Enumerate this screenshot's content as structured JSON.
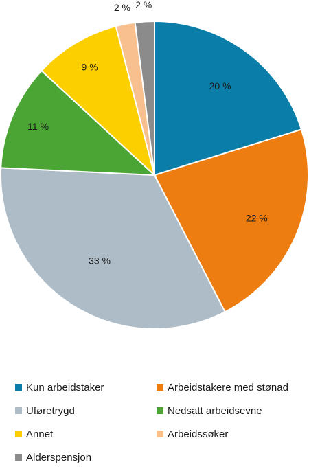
{
  "chart_data": {
    "type": "pie",
    "start_angle_deg": 0,
    "direction": "clockwise",
    "slices": [
      {
        "name": "Kun arbeidstaker",
        "value": 20,
        "label": "20 %",
        "color": "#0a7ea8"
      },
      {
        "name": "Arbeidstakere med stønad",
        "value": 22,
        "label": "22 %",
        "color": "#ee7d11"
      },
      {
        "name": "Uføretrygd",
        "value": 33,
        "label": "33 %",
        "color": "#aebcc7"
      },
      {
        "name": "Nedsatt arbeidsevne",
        "value": 11,
        "label": "11 %",
        "color": "#4aa534"
      },
      {
        "name": "Annet",
        "value": 9,
        "label": "9 %",
        "color": "#fccf00"
      },
      {
        "name": "Arbeidssøker",
        "value": 2,
        "label": "2 %",
        "color": "#f8c08f"
      },
      {
        "name": "Alderspensjon",
        "value": 2,
        "label": "2 %",
        "color": "#8b8b8b"
      }
    ],
    "legend_position": "bottom",
    "legend_columns": 2
  }
}
